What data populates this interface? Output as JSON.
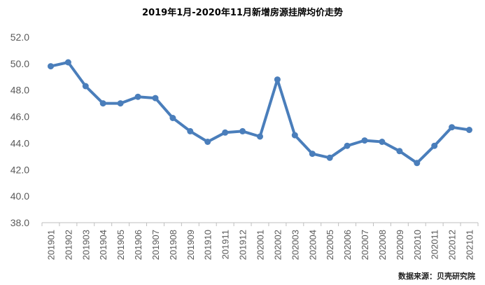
{
  "chart_data": {
    "type": "line",
    "title": "2019年1月-2020年11月新增房源挂牌均价走势",
    "categories": [
      "201901",
      "201902",
      "201903",
      "201904",
      "201905",
      "201906",
      "201907",
      "201908",
      "201909",
      "201910",
      "201911",
      "201912",
      "202001",
      "202002",
      "202003",
      "202004",
      "202005",
      "202006",
      "202007",
      "202008",
      "202009",
      "202010",
      "202011",
      "202012",
      "202101"
    ],
    "series": [
      {
        "values": [
          49.8,
          50.1,
          48.3,
          47.0,
          47.0,
          47.5,
          47.4,
          45.9,
          44.9,
          44.1,
          44.8,
          44.9,
          44.5,
          48.8,
          44.6,
          43.2,
          42.9,
          43.8,
          44.2,
          44.1,
          43.4,
          42.5,
          43.8,
          45.2,
          45.0
        ],
        "color": "#4a7ebb"
      }
    ],
    "yticks": [
      "52.0",
      "50.0",
      "48.0",
      "46.0",
      "44.0",
      "42.0",
      "40.0",
      "38.0"
    ],
    "ylim": [
      38,
      52
    ],
    "xlabel": "",
    "ylabel": "",
    "grid": false,
    "legend": "none",
    "source": "数据来源：贝壳研究院"
  }
}
